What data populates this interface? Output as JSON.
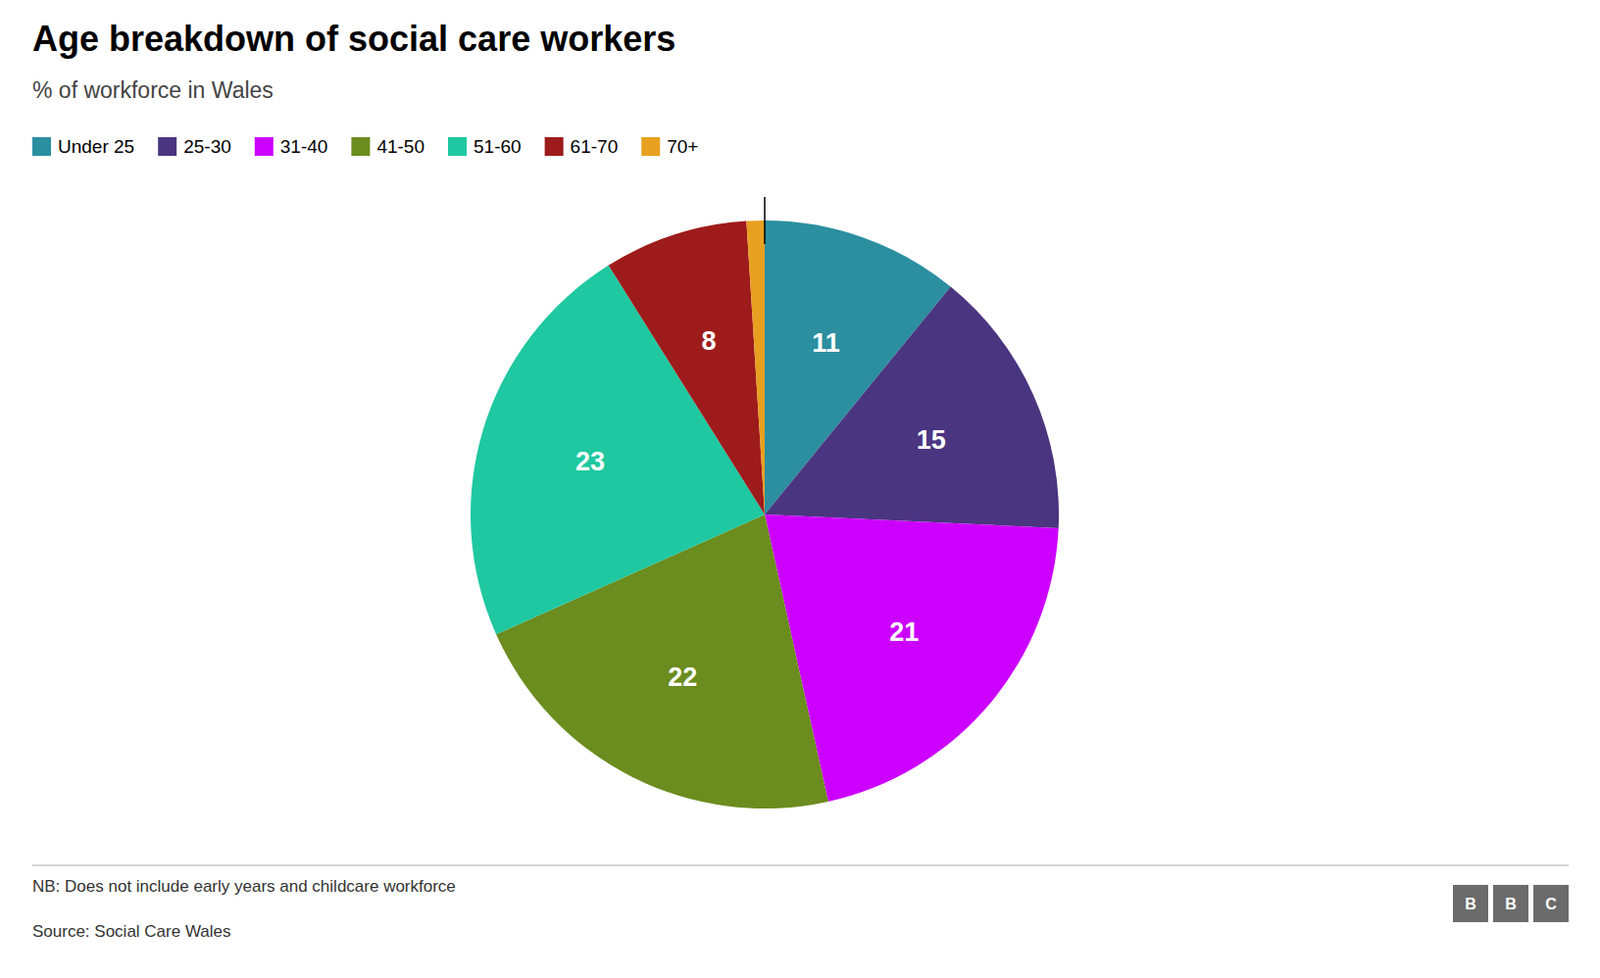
{
  "chart_data": {
    "type": "pie",
    "title": "Age breakdown of social care workers",
    "subtitle": "% of workforce in Wales",
    "categories": [
      "Under 25",
      "25-30",
      "31-40",
      "41-50",
      "51-60",
      "61-70",
      "70+"
    ],
    "values": [
      11,
      15,
      21,
      22,
      23,
      8,
      1
    ],
    "colors": [
      "#2B8FA0",
      "#4A3580",
      "#CC00FF",
      "#6B8C1E",
      "#1FC8A0",
      "#9E1B1B",
      "#E8A020"
    ],
    "data_labels": true,
    "value_labels": [
      "11",
      "15",
      "21",
      "22",
      "23",
      "8",
      null
    ],
    "legend": "top",
    "note": "NB: Does not include early years and childcare workforce",
    "source": "Source: Social Care Wales",
    "logo": "BBC"
  }
}
